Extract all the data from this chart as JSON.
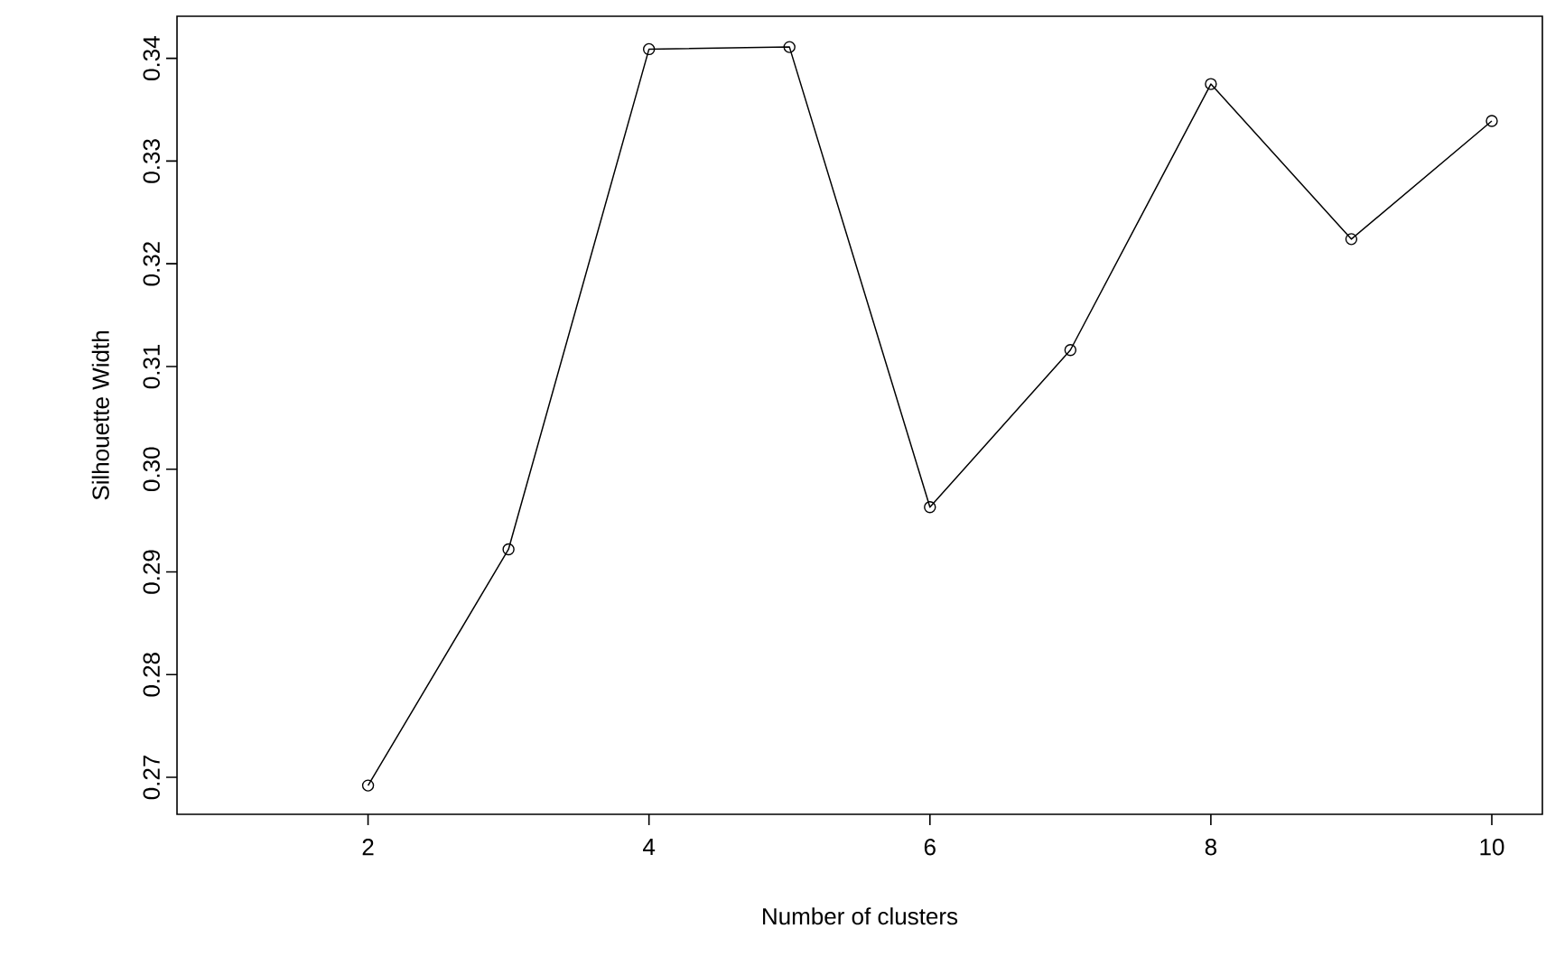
{
  "chart_data": {
    "type": "line",
    "xlabel": "Number of clusters",
    "ylabel": "Silhouette Width",
    "x": [
      2,
      3,
      4,
      5,
      6,
      7,
      8,
      9,
      10
    ],
    "series": [
      {
        "color": "#000000",
        "values": [
          0.2692,
          0.2922,
          0.3409,
          0.3411,
          0.2963,
          0.3116,
          0.3375,
          0.3224,
          0.3339
        ]
      }
    ],
    "xlim": [
      0.64,
      10.36
    ],
    "ylim": [
      0.2664,
      0.3441
    ],
    "xticks": [
      2,
      4,
      6,
      8,
      10
    ],
    "yticks": [
      {
        "value": 0.27,
        "label": "0.27"
      },
      {
        "value": 0.28,
        "label": "0.28"
      },
      {
        "value": 0.29,
        "label": "0.29"
      },
      {
        "value": 0.3,
        "label": "0.30"
      },
      {
        "value": 0.31,
        "label": "0.31"
      },
      {
        "value": 0.32,
        "label": "0.32"
      },
      {
        "value": 0.33,
        "label": "0.33"
      },
      {
        "value": 0.34,
        "label": "0.34"
      }
    ],
    "grid": false,
    "legend": false,
    "marker": "circle",
    "line_style": "solid"
  }
}
